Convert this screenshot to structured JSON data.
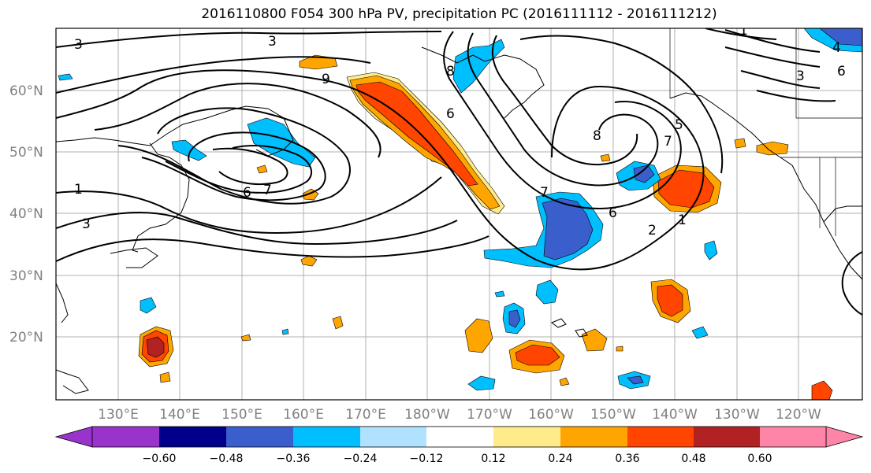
{
  "title": "2016110800 F054 300 hPa PV, precipitation PC (2016111112 - 2016111212)",
  "lon_labels": [
    "130°E",
    "140°E",
    "150°E",
    "160°E",
    "170°E",
    "180°W",
    "170°W",
    "160°W",
    "150°W",
    "140°W",
    "130°W",
    "120°W"
  ],
  "lat_labels": [
    "60°N",
    "50°N",
    "40°N",
    "30°N",
    "20°N"
  ],
  "colorbar": {
    "tick_labels": [
      "−0.60",
      "−0.48",
      "−0.36",
      "−0.24",
      "−0.12",
      "0.12",
      "0.24",
      "0.36",
      "0.48",
      "0.60"
    ],
    "colors": [
      "#9933cc",
      "#00008b",
      "#3a5fcd",
      "#00bfff",
      "#b0e2ff",
      "#ffffff",
      "#ffeb8a",
      "#ffa500",
      "#ff4500",
      "#b22222",
      "#ff85a8"
    ]
  },
  "contour_labels": [
    "3",
    "3",
    "1",
    "3",
    "6",
    "7",
    "9",
    "8",
    "6",
    "7",
    "8",
    "7",
    "6",
    "2",
    "1",
    "5",
    "4",
    "3",
    "6",
    "1"
  ]
}
